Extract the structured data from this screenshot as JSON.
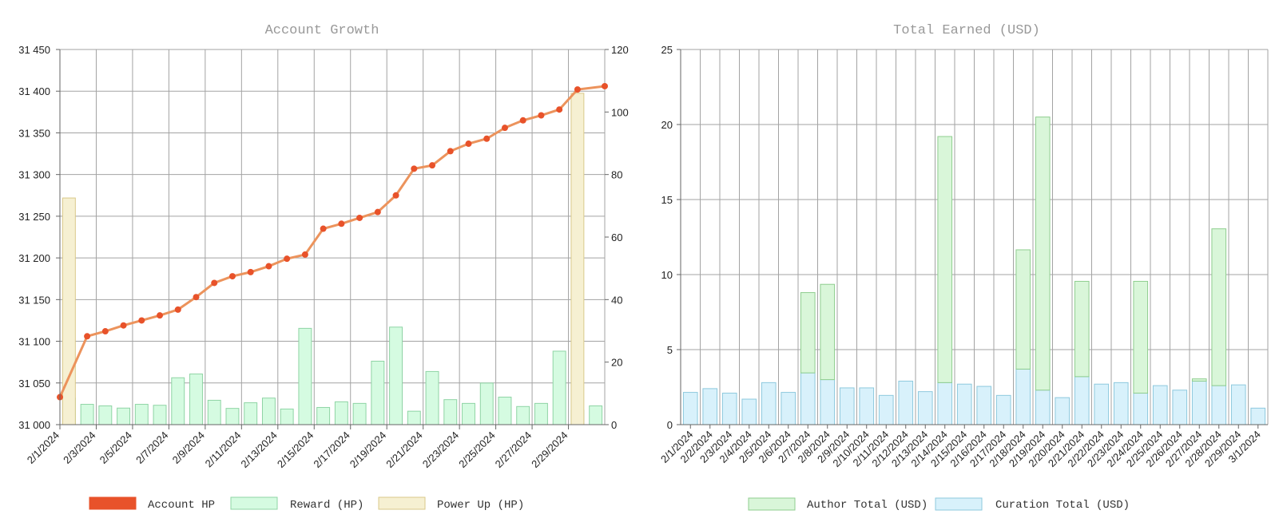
{
  "chart_data": [
    {
      "type": "bar+line",
      "title": "Account Growth",
      "categories": [
        "2/1/2024",
        "2/2/2024",
        "2/3/2024",
        "2/4/2024",
        "2/5/2024",
        "2/6/2024",
        "2/7/2024",
        "2/8/2024",
        "2/9/2024",
        "2/10/2024",
        "2/11/2024",
        "2/12/2024",
        "2/13/2024",
        "2/14/2024",
        "2/15/2024",
        "2/16/2024",
        "2/17/2024",
        "2/18/2024",
        "2/19/2024",
        "2/20/2024",
        "2/21/2024",
        "2/22/2024",
        "2/23/2024",
        "2/24/2024",
        "2/25/2024",
        "2/26/2024",
        "2/27/2024",
        "2/28/2024",
        "2/29/2024",
        "3/1/2024"
      ],
      "x_tick_labels": [
        "2/1/2024",
        "2/3/2024",
        "2/5/2024",
        "2/7/2024",
        "2/9/2024",
        "2/11/2024",
        "2/13/2024",
        "2/15/2024",
        "2/17/2024",
        "2/19/2024",
        "2/21/2024",
        "2/23/2024",
        "2/25/2024",
        "2/27/2024",
        "2/29/2024"
      ],
      "y_left": {
        "min": 31000,
        "max": 31450,
        "ticks": [
          31000,
          31050,
          31100,
          31150,
          31200,
          31250,
          31300,
          31350,
          31400,
          31450
        ],
        "tick_labels": [
          "31 000",
          "31 050",
          "31 100",
          "31 150",
          "31 200",
          "31 250",
          "31 300",
          "31 350",
          "31 400",
          "31 450"
        ]
      },
      "y_right": {
        "min": 0,
        "max": 120,
        "ticks": [
          0,
          20,
          40,
          60,
          80,
          100,
          120
        ],
        "tick_labels": [
          "0",
          "20",
          "40",
          "60",
          "80",
          "100",
          "120"
        ]
      },
      "series": [
        {
          "name": "Account HP",
          "kind": "line",
          "axis": "left",
          "color": "#e8522a",
          "values": [
            31033,
            31106,
            31112,
            31119,
            31125,
            31131,
            31138,
            31153,
            31170,
            31178,
            31183,
            31190,
            31199,
            31204,
            31235,
            31241,
            31248,
            31255,
            31275,
            31307,
            31311,
            31328,
            31337,
            31343,
            31356,
            31365,
            31371,
            31378,
            31402,
            31406
          ]
        },
        {
          "name": "Reward (HP)",
          "kind": "bar",
          "axis": "right",
          "color": "#d5fbe1",
          "values": [
            8.5,
            6.5,
            6,
            5.3,
            6.5,
            6.2,
            15,
            16.2,
            7.8,
            5.2,
            7,
            8.5,
            5,
            30.8,
            5.5,
            7.3,
            6.8,
            20.3,
            31.2,
            4.3,
            17,
            8,
            6.8,
            13.3,
            8.8,
            5.8,
            6.8,
            23.5,
            4.6,
            6
          ]
        },
        {
          "name": "Power Up (HP)",
          "kind": "bar",
          "axis": "right",
          "color": "#f6f0d2",
          "values": [
            72.5,
            0,
            0,
            0,
            0,
            0,
            0,
            0,
            0,
            0,
            0,
            0,
            0,
            0,
            0,
            0,
            0,
            0,
            0,
            0,
            0,
            0,
            0,
            0,
            0,
            0,
            0,
            0,
            106,
            0
          ]
        }
      ]
    },
    {
      "type": "stacked-bar",
      "title": "Total Earned (USD)",
      "categories": [
        "2/1/2024",
        "2/2/2024",
        "2/3/2024",
        "2/4/2024",
        "2/5/2024",
        "2/6/2024",
        "2/7/2024",
        "2/8/2024",
        "2/9/2024",
        "2/10/2024",
        "2/11/2024",
        "2/12/2024",
        "2/13/2024",
        "2/14/2024",
        "2/15/2024",
        "2/16/2024",
        "2/17/2024",
        "2/18/2024",
        "2/19/2024",
        "2/20/2024",
        "2/21/2024",
        "2/22/2024",
        "2/23/2024",
        "2/24/2024",
        "2/25/2024",
        "2/26/2024",
        "2/27/2024",
        "2/28/2024",
        "2/29/2024",
        "3/1/2024"
      ],
      "y": {
        "min": 0,
        "max": 25,
        "ticks": [
          0,
          5,
          10,
          15,
          20,
          25
        ],
        "tick_labels": [
          "0",
          "5",
          "10",
          "15",
          "20",
          "25"
        ]
      },
      "series": [
        {
          "name": "Curation Total (USD)",
          "color": "#d8f1fb",
          "values": [
            2.15,
            2.4,
            2.1,
            1.7,
            2.8,
            2.15,
            3.45,
            3.0,
            2.45,
            2.45,
            1.95,
            2.9,
            2.2,
            2.8,
            2.7,
            2.55,
            1.95,
            3.7,
            2.3,
            1.8,
            3.2,
            2.7,
            2.8,
            2.1,
            2.6,
            2.3,
            2.9,
            2.6,
            2.65,
            1.1
          ]
        },
        {
          "name": "Author Total (USD)",
          "color": "#d9f6d9",
          "values": [
            0,
            0,
            0,
            0,
            0,
            0,
            5.35,
            6.35,
            0,
            0,
            0,
            0,
            0,
            16.4,
            0,
            0,
            0,
            7.95,
            18.2,
            0,
            6.35,
            0,
            0,
            7.45,
            0,
            0,
            0.15,
            10.45,
            0,
            0
          ]
        }
      ]
    }
  ],
  "legend_left": [
    "Account HP",
    "Reward (HP)",
    "Power Up (HP)"
  ],
  "legend_right": [
    "Author Total (USD)",
    "Curation Total (USD)"
  ]
}
